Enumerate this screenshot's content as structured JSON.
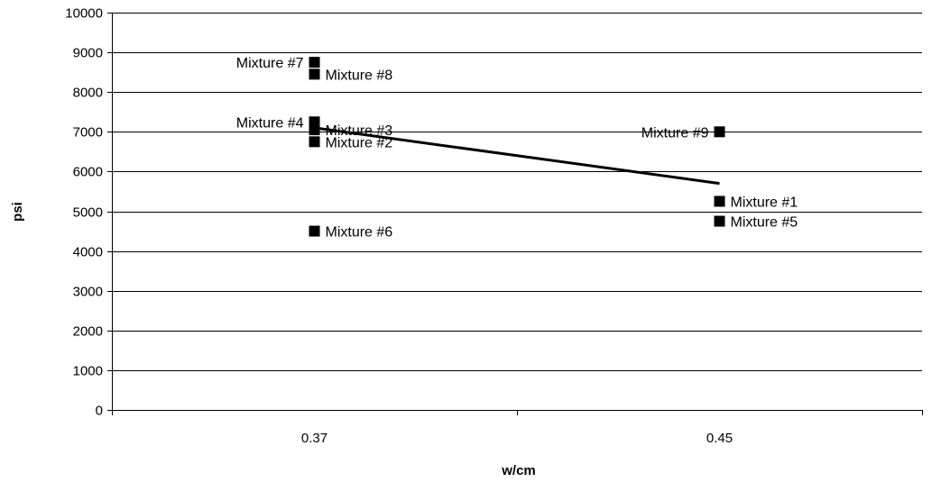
{
  "chart_data": {
    "type": "scatter",
    "title": "",
    "xlabel": "w/cm",
    "ylabel": "psi",
    "categories": [
      "0.37",
      "0.45"
    ],
    "ylim": [
      0,
      10000
    ],
    "yticks": [
      "0",
      "1000",
      "2000",
      "3000",
      "4000",
      "5000",
      "6000",
      "7000",
      "8000",
      "9000",
      "10000"
    ],
    "grid": "horizontal",
    "legend": "none",
    "marker_color": "#000000",
    "points": [
      {
        "label": "Mixture #7",
        "category": "0.37",
        "y": 8750,
        "label_side": "left"
      },
      {
        "label": "Mixture #8",
        "category": "0.37",
        "y": 8450,
        "label_side": "right"
      },
      {
        "label": "Mixture #4",
        "category": "0.37",
        "y": 7250,
        "label_side": "left"
      },
      {
        "label": "Mixture #3",
        "category": "0.37",
        "y": 7050,
        "label_side": "right"
      },
      {
        "label": "Mixture #2",
        "category": "0.37",
        "y": 6750,
        "label_side": "right"
      },
      {
        "label": "Mixture #6",
        "category": "0.37",
        "y": 4500,
        "label_side": "right"
      },
      {
        "label": "Mixture #9",
        "category": "0.45",
        "y": 7000,
        "label_side": "left"
      },
      {
        "label": "Mixture #1",
        "category": "0.45",
        "y": 5250,
        "label_side": "right"
      },
      {
        "label": "Mixture #5",
        "category": "0.45",
        "y": 4750,
        "label_side": "right"
      }
    ],
    "trendline": {
      "category_start": "0.37",
      "y_start": 7100,
      "category_end": "0.45",
      "y_end": 5700,
      "color": "#000000"
    }
  }
}
